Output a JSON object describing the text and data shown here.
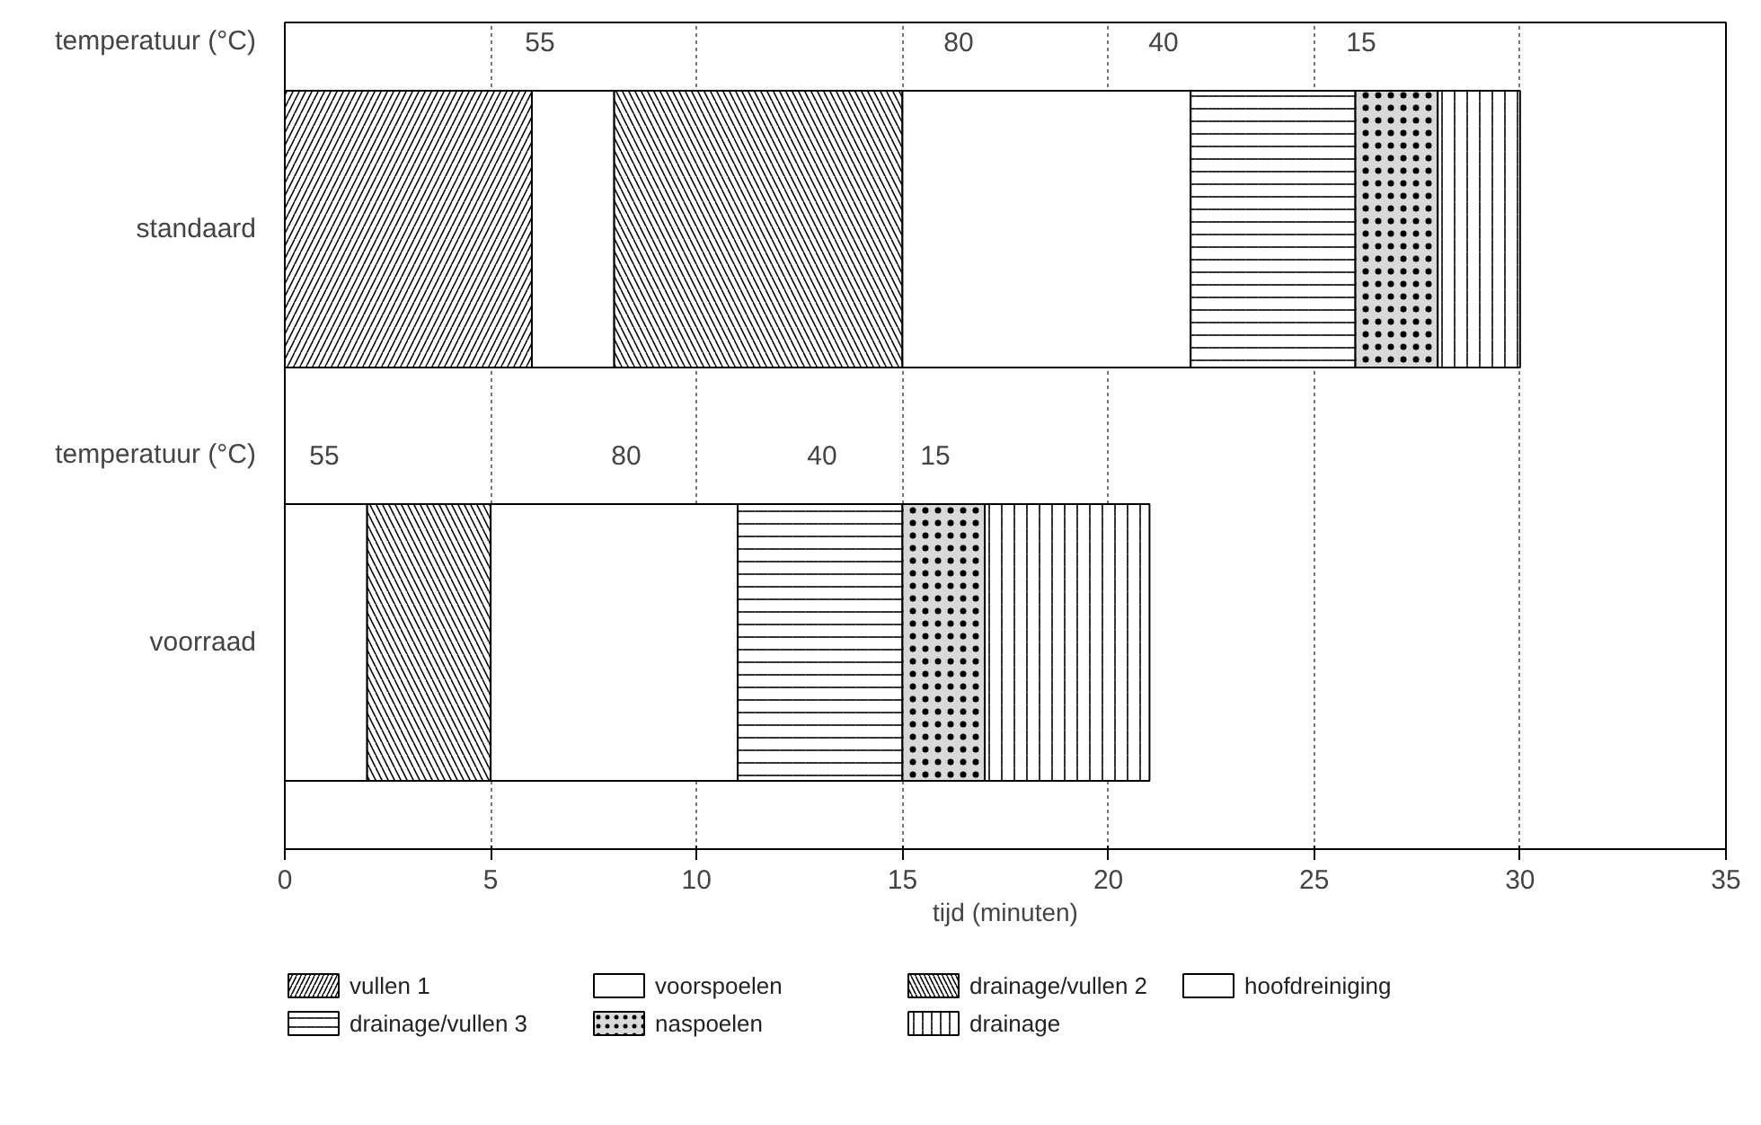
{
  "chart_data": {
    "type": "bar",
    "orientation": "horizontal",
    "stacked": true,
    "categories": [
      "standaard",
      "voorraad"
    ],
    "xlabel": "tijd (minuten)",
    "xlim": [
      0,
      35
    ],
    "xticks": [
      0,
      5,
      10,
      15,
      20,
      25,
      30,
      35
    ],
    "grid": "x",
    "legend": "bottom",
    "series": [
      {
        "name": "vullen 1",
        "color": "#ffffff",
        "values": [
          6,
          null
        ]
      },
      {
        "name": "voorspoelen",
        "color": "#ffffff",
        "values": [
          2,
          2
        ]
      },
      {
        "name": "drainage/vullen 2",
        "color": "#ffffff",
        "values": [
          7,
          3
        ]
      },
      {
        "name": "hoofdreiniging",
        "color": "#ffffff",
        "values": [
          7,
          6
        ]
      },
      {
        "name": "drainage/vullen 3",
        "color": "#ffffff",
        "values": [
          4,
          4
        ]
      },
      {
        "name": "naspoelen",
        "color": "#d9d9d9",
        "values": [
          2,
          2
        ]
      },
      {
        "name": "drainage",
        "color": "#ffffff",
        "values": [
          2,
          4
        ]
      }
    ],
    "annotations": [
      "temperatuur (°C)",
      "55",
      "80",
      "40",
      "15",
      "temperatuur (°C)",
      "55",
      "80",
      "40",
      "15"
    ]
  }
}
